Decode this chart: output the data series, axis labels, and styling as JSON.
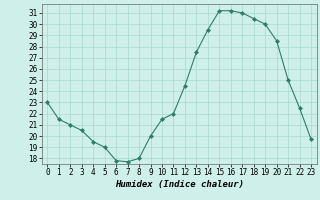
{
  "x": [
    0,
    1,
    2,
    3,
    4,
    5,
    6,
    7,
    8,
    9,
    10,
    11,
    12,
    13,
    14,
    15,
    16,
    17,
    18,
    19,
    20,
    21,
    22,
    23
  ],
  "y": [
    23,
    21.5,
    21,
    20.5,
    19.5,
    19,
    17.8,
    17.7,
    18,
    20,
    21.5,
    22,
    24.5,
    27.5,
    29.5,
    31.2,
    31.2,
    31,
    30.5,
    30,
    28.5,
    25,
    22.5,
    19.7
  ],
  "line_color": "#2d7d6b",
  "marker": "D",
  "marker_size": 2.0,
  "bg_color": "#cff0ea",
  "grid_color": "#a8d8d0",
  "xlabel": "Humidex (Indice chaleur)",
  "xlabel_fontsize": 6.5,
  "tick_fontsize": 5.5,
  "ylim": [
    17.5,
    31.8
  ],
  "xlim": [
    -0.5,
    23.5
  ],
  "yticks": [
    18,
    19,
    20,
    21,
    22,
    23,
    24,
    25,
    26,
    27,
    28,
    29,
    30,
    31
  ],
  "xticks": [
    0,
    1,
    2,
    3,
    4,
    5,
    6,
    7,
    8,
    9,
    10,
    11,
    12,
    13,
    14,
    15,
    16,
    17,
    18,
    19,
    20,
    21,
    22,
    23
  ]
}
